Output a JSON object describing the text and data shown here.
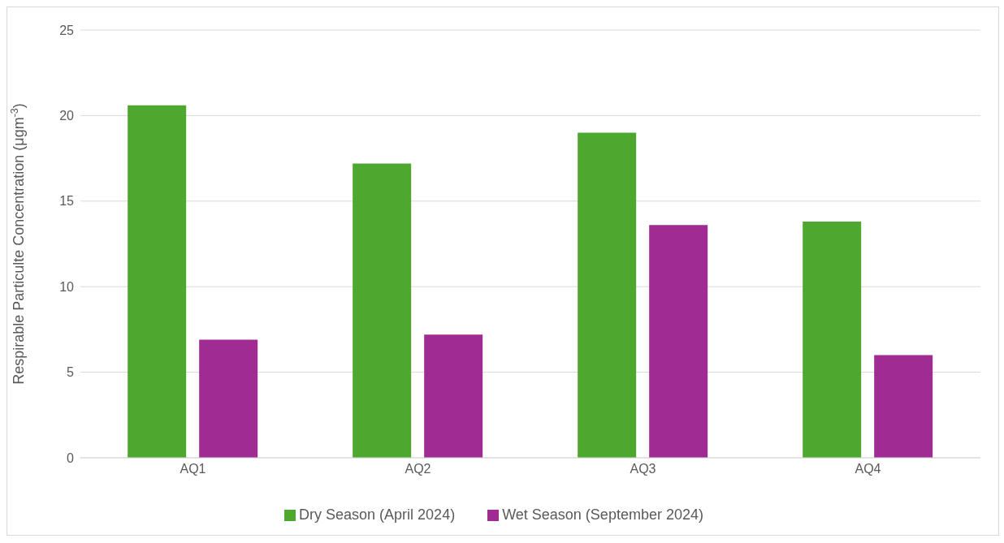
{
  "chart_data": {
    "type": "bar",
    "ylabel": "Respirable Particulte Concentration (μgm$^{-3}$)",
    "categories": [
      "AQ1",
      "AQ2",
      "AQ3",
      "AQ4"
    ],
    "series": [
      {
        "name": "Dry Season (April 2024)",
        "color": "#4ea72e",
        "values": [
          20.6,
          17.2,
          19.0,
          13.8
        ]
      },
      {
        "name": "Wet Season (September 2024)",
        "color": "#a02b93",
        "values": [
          6.9,
          7.2,
          13.6,
          6.0
        ]
      }
    ],
    "ylim": [
      0,
      25
    ],
    "yticks": [
      0,
      5,
      10,
      15,
      20,
      25
    ],
    "grid": "y",
    "legend": "bottom"
  }
}
